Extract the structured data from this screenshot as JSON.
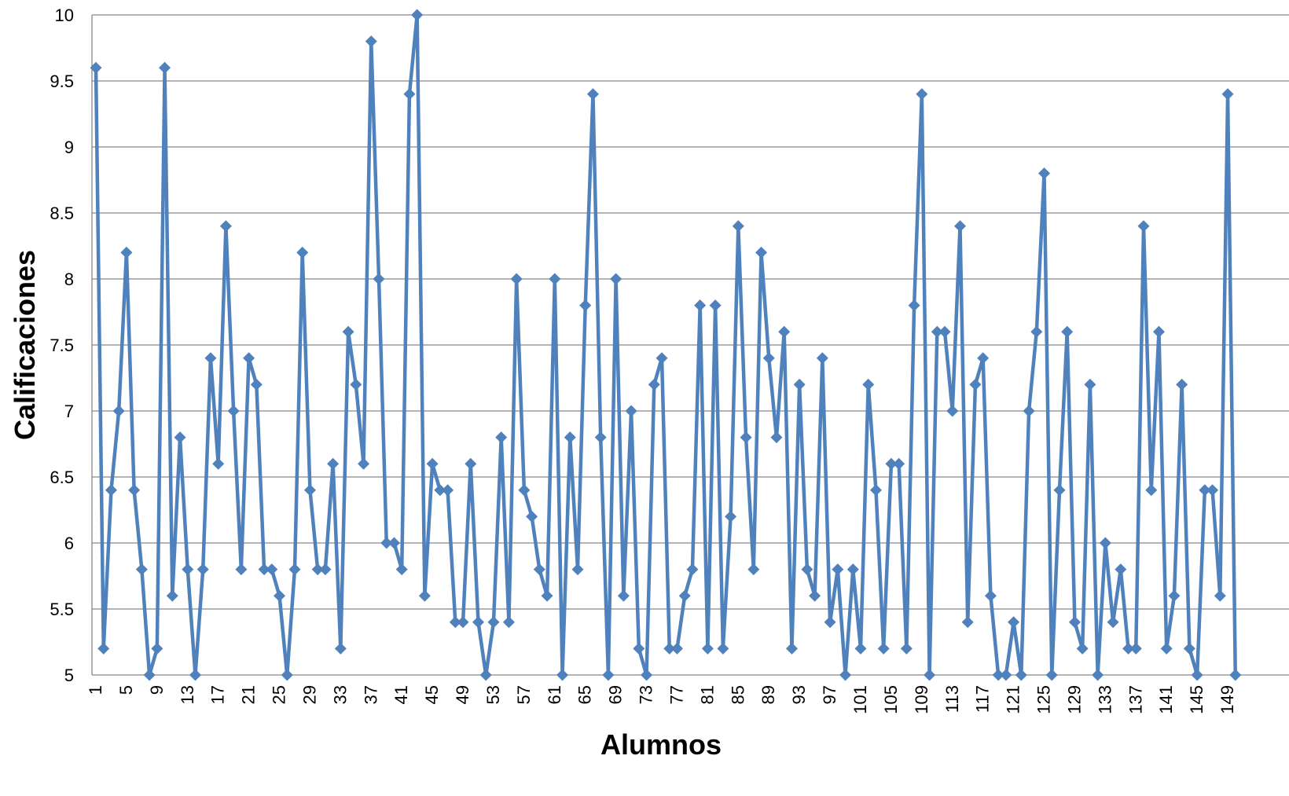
{
  "chart_data": {
    "type": "line",
    "title": "",
    "xlabel": "Alumnos",
    "ylabel": "Calificaciones",
    "ylim": [
      5,
      10
    ],
    "y_ticks": [
      "5",
      "5.5",
      "6",
      "6.5",
      "7",
      "7.5",
      "8",
      "8.5",
      "9",
      "9.5",
      "10"
    ],
    "x_tick_labels": [
      "1",
      "5",
      "9",
      "13",
      "17",
      "21",
      "25",
      "29",
      "33",
      "37",
      "41",
      "45",
      "49",
      "53",
      "57",
      "61",
      "65",
      "69",
      "73",
      "77",
      "81",
      "85",
      "89",
      "93",
      "97",
      "101",
      "105",
      "109",
      "113",
      "117",
      "121",
      "125",
      "129",
      "133",
      "137",
      "141",
      "145",
      "149"
    ],
    "grid": "horizontal",
    "legend": "none",
    "colors": {
      "series": "#4F81BD",
      "grid": "#868686"
    },
    "series": [
      {
        "values": [
          9.6,
          5.2,
          6.4,
          7.0,
          8.2,
          6.4,
          5.8,
          5.0,
          5.2,
          9.6,
          5.6,
          6.8,
          5.8,
          5.0,
          5.8,
          7.4,
          6.6,
          8.4,
          7.0,
          5.8,
          7.4,
          7.2,
          5.8,
          5.8,
          5.6,
          5.0,
          5.8,
          8.2,
          6.4,
          5.8,
          5.8,
          6.6,
          5.2,
          7.6,
          7.2,
          6.6,
          9.8,
          8.0,
          6.0,
          6.0,
          5.8,
          9.4,
          10.0,
          5.6,
          6.6,
          6.4,
          6.4,
          5.4,
          5.4,
          6.6,
          5.4,
          5.0,
          5.4,
          6.8,
          5.4,
          8.0,
          6.4,
          6.2,
          5.8,
          5.6,
          8.0,
          5.0,
          6.8,
          5.8,
          7.8,
          9.4,
          6.8,
          5.0,
          8.0,
          5.6,
          7.0,
          5.2,
          5.0,
          7.2,
          7.4,
          5.2,
          5.2,
          5.6,
          5.8,
          7.8,
          5.2,
          7.8,
          5.2,
          6.2,
          8.4,
          6.8,
          5.8,
          8.2,
          7.4,
          6.8,
          7.6,
          5.2,
          7.2,
          5.8,
          5.6,
          7.4,
          5.4,
          5.8,
          5.0,
          5.8,
          5.2,
          7.2,
          6.4,
          5.2,
          6.6,
          6.6,
          5.2,
          7.8,
          9.4,
          5.0,
          7.6,
          7.6,
          7.0,
          8.4,
          5.4,
          7.2,
          7.4,
          5.6,
          5.0,
          5.0,
          5.4,
          5.0,
          7.0,
          7.6,
          8.8,
          5.0,
          6.4,
          7.6,
          5.4,
          5.2,
          7.2,
          5.0,
          6.0,
          5.4,
          5.8,
          5.2,
          5.2,
          8.4,
          6.4,
          7.6,
          5.2,
          5.6,
          7.2,
          5.2,
          5.0,
          6.4,
          6.4,
          5.6,
          9.4,
          5.0
        ]
      }
    ]
  }
}
